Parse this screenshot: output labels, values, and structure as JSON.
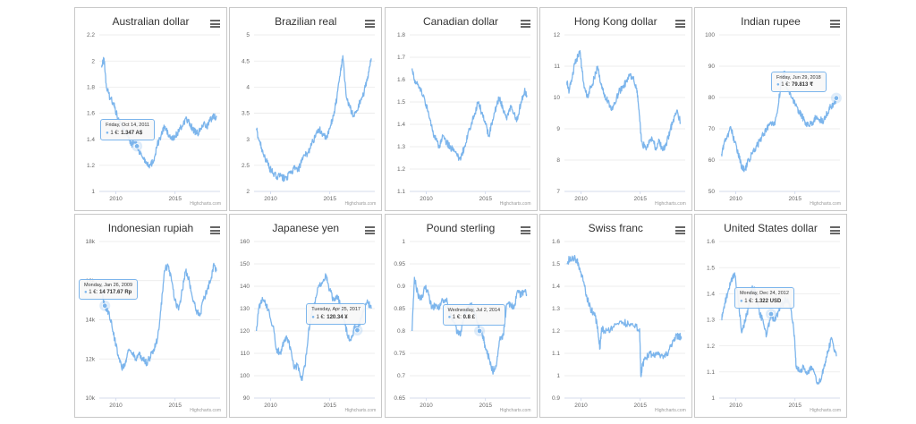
{
  "credit": "Highcharts.com",
  "line_color": "#7cb5ec",
  "menu_icon": "hamburger-menu-icon",
  "chart_data": [
    {
      "type": "line",
      "title": "Australian dollar",
      "ylim": [
        1,
        2.2
      ],
      "yticks": [
        "2.2",
        "2",
        "1.8",
        "1.6",
        "1.4",
        "1.2",
        "1"
      ],
      "xlim": [
        2008.6,
        2018.8
      ],
      "xticks": [
        "2010",
        "2015"
      ],
      "series": [
        {
          "x": [
            2008.8,
            2009.0,
            2009.2,
            2009.5,
            2009.8,
            2010.1,
            2010.4,
            2010.7,
            2011.0,
            2011.3,
            2011.6,
            2011.78,
            2012.0,
            2012.3,
            2012.6,
            2012.9,
            2013.2,
            2013.5,
            2013.8,
            2014.1,
            2014.4,
            2014.7,
            2015.0,
            2015.3,
            2015.6,
            2015.9,
            2016.2,
            2016.5,
            2016.8,
            2017.1,
            2017.4,
            2017.7,
            2018.0,
            2018.3,
            2018.5
          ],
          "y": [
            1.95,
            2.02,
            1.8,
            1.72,
            1.68,
            1.58,
            1.52,
            1.48,
            1.42,
            1.36,
            1.38,
            1.347,
            1.3,
            1.26,
            1.22,
            1.2,
            1.24,
            1.36,
            1.42,
            1.5,
            1.44,
            1.4,
            1.42,
            1.46,
            1.5,
            1.56,
            1.52,
            1.48,
            1.44,
            1.46,
            1.52,
            1.5,
            1.55,
            1.58,
            1.57
          ]
        }
      ],
      "tooltip": {
        "date": "Friday, Oct 14, 2011",
        "label": "1 €:",
        "value": "1.347 A$",
        "x": 2011.78,
        "y": 1.347
      }
    },
    {
      "type": "line",
      "title": "Brazilian real",
      "ylim": [
        2,
        5
      ],
      "yticks": [
        "5",
        "4.5",
        "4",
        "3.5",
        "3",
        "2.5",
        "2"
      ],
      "xlim": [
        2008.6,
        2018.8
      ],
      "xticks": [
        "2010",
        "2015"
      ],
      "series": [
        {
          "x": [
            2008.8,
            2009.0,
            2009.3,
            2009.6,
            2009.9,
            2010.2,
            2010.5,
            2010.8,
            2011.1,
            2011.4,
            2011.7,
            2012.0,
            2012.3,
            2012.6,
            2012.9,
            2013.2,
            2013.5,
            2013.8,
            2014.1,
            2014.4,
            2014.7,
            2015.0,
            2015.3,
            2015.6,
            2015.9,
            2016.1,
            2016.4,
            2016.7,
            2017.0,
            2017.3,
            2017.6,
            2017.9,
            2018.2,
            2018.5
          ],
          "y": [
            3.2,
            3.0,
            2.8,
            2.6,
            2.45,
            2.35,
            2.28,
            2.3,
            2.25,
            2.28,
            2.35,
            2.45,
            2.4,
            2.55,
            2.7,
            2.75,
            2.95,
            3.05,
            3.2,
            3.1,
            3.0,
            3.2,
            3.45,
            3.8,
            4.3,
            4.6,
            3.8,
            3.6,
            3.45,
            3.55,
            3.75,
            3.9,
            4.2,
            4.55
          ]
        }
      ]
    },
    {
      "type": "line",
      "title": "Canadian dollar",
      "ylim": [
        1.1,
        1.8
      ],
      "yticks": [
        "1.8",
        "1.7",
        "1.6",
        "1.5",
        "1.4",
        "1.3",
        "1.2",
        "1.1"
      ],
      "xlim": [
        2008.6,
        2018.8
      ],
      "xticks": [
        "2010",
        "2015"
      ],
      "series": [
        {
          "x": [
            2008.8,
            2009.0,
            2009.3,
            2009.6,
            2009.9,
            2010.2,
            2010.5,
            2010.8,
            2011.1,
            2011.4,
            2011.7,
            2012.0,
            2012.3,
            2012.6,
            2012.9,
            2013.2,
            2013.5,
            2013.8,
            2014.1,
            2014.4,
            2014.7,
            2015.0,
            2015.3,
            2015.6,
            2015.9,
            2016.2,
            2016.5,
            2016.8,
            2017.1,
            2017.4,
            2017.7,
            2018.0,
            2018.3,
            2018.5
          ],
          "y": [
            1.65,
            1.6,
            1.58,
            1.55,
            1.5,
            1.45,
            1.38,
            1.33,
            1.3,
            1.35,
            1.32,
            1.3,
            1.28,
            1.26,
            1.24,
            1.3,
            1.35,
            1.4,
            1.45,
            1.5,
            1.45,
            1.4,
            1.35,
            1.42,
            1.48,
            1.52,
            1.46,
            1.42,
            1.48,
            1.45,
            1.42,
            1.5,
            1.55,
            1.53
          ]
        }
      ]
    },
    {
      "type": "line",
      "title": "Hong Kong dollar",
      "ylim": [
        7,
        12
      ],
      "yticks": [
        "12",
        "11",
        "10",
        "9",
        "8",
        "7"
      ],
      "xlim": [
        2008.6,
        2018.8
      ],
      "xticks": [
        "2010",
        "2015"
      ],
      "series": [
        {
          "x": [
            2008.8,
            2009.0,
            2009.3,
            2009.6,
            2009.9,
            2010.2,
            2010.5,
            2010.8,
            2011.1,
            2011.4,
            2011.7,
            2012.0,
            2012.3,
            2012.6,
            2012.9,
            2013.2,
            2013.5,
            2013.8,
            2014.1,
            2014.4,
            2014.7,
            2014.9,
            2015.1,
            2015.4,
            2015.7,
            2016.0,
            2016.3,
            2016.6,
            2016.9,
            2017.2,
            2017.5,
            2017.8,
            2018.1,
            2018.4
          ],
          "y": [
            10.5,
            10.2,
            10.8,
            11.2,
            11.5,
            10.5,
            10.0,
            10.3,
            10.6,
            11.0,
            10.4,
            10.0,
            9.9,
            9.6,
            9.8,
            10.2,
            10.3,
            10.5,
            10.7,
            10.6,
            10.3,
            9.6,
            8.6,
            8.4,
            8.5,
            8.7,
            8.4,
            8.6,
            8.3,
            8.5,
            8.9,
            9.3,
            9.6,
            9.2
          ]
        }
      ]
    },
    {
      "type": "line",
      "title": "Indian rupee",
      "ylim": [
        50,
        100
      ],
      "yticks": [
        "100",
        "90",
        "80",
        "70",
        "60",
        "50"
      ],
      "xlim": [
        2008.6,
        2018.8
      ],
      "xticks": [
        "2010",
        "2015"
      ],
      "series": [
        {
          "x": [
            2008.8,
            2009.0,
            2009.3,
            2009.6,
            2009.9,
            2010.2,
            2010.5,
            2010.8,
            2011.1,
            2011.4,
            2011.7,
            2012.0,
            2012.3,
            2012.6,
            2012.9,
            2013.2,
            2013.5,
            2013.8,
            2014.1,
            2014.4,
            2014.7,
            2015.0,
            2015.3,
            2015.6,
            2015.9,
            2016.2,
            2016.5,
            2016.8,
            2017.1,
            2017.4,
            2017.7,
            2018.0,
            2018.3,
            2018.49
          ],
          "y": [
            62,
            65,
            68,
            70,
            66,
            62,
            58,
            57,
            60,
            62,
            64,
            66,
            68,
            70,
            72,
            71,
            75,
            84,
            88,
            82,
            80,
            78,
            76,
            74,
            72,
            71,
            72,
            74,
            73,
            72,
            75,
            77,
            78,
            79.813
          ]
        }
      ],
      "tooltip": {
        "date": "Friday, Jun 29, 2018",
        "label": "1 €:",
        "value": "79.813 ₹",
        "x": 2018.49,
        "y": 79.813
      }
    },
    {
      "type": "line",
      "title": "Indonesian rupiah",
      "ylim": [
        10000,
        18000
      ],
      "yticks": [
        "18k",
        "16k",
        "14k",
        "12k",
        "10k"
      ],
      "xlim": [
        2008.6,
        2018.8
      ],
      "xticks": [
        "2010",
        "2015"
      ],
      "series": [
        {
          "x": [
            2008.8,
            2009.07,
            2009.3,
            2009.6,
            2009.9,
            2010.2,
            2010.5,
            2010.8,
            2011.1,
            2011.4,
            2011.7,
            2012.0,
            2012.3,
            2012.6,
            2012.9,
            2013.2,
            2013.5,
            2013.8,
            2014.1,
            2014.4,
            2014.7,
            2015.0,
            2015.3,
            2015.6,
            2015.9,
            2016.2,
            2016.5,
            2016.8,
            2017.1,
            2017.4,
            2017.7,
            2018.0,
            2018.3,
            2018.5
          ],
          "y": [
            15500,
            14717.67,
            14500,
            14000,
            13000,
            12200,
            11500,
            11800,
            12500,
            12300,
            12000,
            12200,
            12000,
            11800,
            12100,
            12500,
            13000,
            14500,
            16500,
            16800,
            16000,
            15000,
            14500,
            15500,
            16500,
            16000,
            15000,
            14500,
            14200,
            15000,
            15500,
            16000,
            16800,
            16500
          ]
        }
      ],
      "tooltip": {
        "date": "Monday, Jan 26, 2009",
        "label": "1 €:",
        "value": "14 717.67 Rp",
        "x": 2009.07,
        "y": 14717.67
      }
    },
    {
      "type": "line",
      "title": "Japanese yen",
      "ylim": [
        90,
        160
      ],
      "yticks": [
        "160",
        "150",
        "140",
        "130",
        "120",
        "110",
        "100",
        "90"
      ],
      "xlim": [
        2008.6,
        2018.8
      ],
      "xticks": [
        "2010",
        "2015"
      ],
      "series": [
        {
          "x": [
            2008.8,
            2009.0,
            2009.3,
            2009.6,
            2009.9,
            2010.2,
            2010.5,
            2010.8,
            2011.1,
            2011.4,
            2011.7,
            2012.0,
            2012.3,
            2012.6,
            2012.9,
            2013.2,
            2013.5,
            2013.8,
            2014.1,
            2014.4,
            2014.7,
            2015.0,
            2015.3,
            2015.6,
            2015.9,
            2016.2,
            2016.5,
            2016.8,
            2017.1,
            2017.32,
            2017.6,
            2017.9,
            2018.2,
            2018.5
          ],
          "y": [
            120,
            130,
            135,
            132,
            128,
            122,
            112,
            110,
            115,
            117,
            112,
            103,
            105,
            98,
            104,
            120,
            128,
            135,
            140,
            142,
            145,
            138,
            134,
            136,
            132,
            125,
            118,
            116,
            122,
            120.34,
            125,
            130,
            133,
            130
          ]
        }
      ],
      "tooltip": {
        "date": "Tuesday, Apr 25, 2017",
        "label": "1 €:",
        "value": "120.34 ¥",
        "x": 2017.32,
        "y": 120.34
      }
    },
    {
      "type": "line",
      "title": "Pound sterling",
      "ylim": [
        0.65,
        1
      ],
      "yticks": [
        "1",
        "0.95",
        "0.9",
        "0.85",
        "0.8",
        "0.75",
        "0.7",
        "0.65"
      ],
      "xlim": [
        2008.6,
        2018.8
      ],
      "xticks": [
        "2010",
        "2015"
      ],
      "series": [
        {
          "x": [
            2008.8,
            2009.0,
            2009.3,
            2009.6,
            2009.9,
            2010.2,
            2010.5,
            2010.8,
            2011.1,
            2011.4,
            2011.7,
            2012.0,
            2012.3,
            2012.6,
            2012.9,
            2013.2,
            2013.5,
            2013.8,
            2014.1,
            2014.5,
            2014.8,
            2015.0,
            2015.3,
            2015.6,
            2015.9,
            2016.2,
            2016.5,
            2016.8,
            2017.1,
            2017.4,
            2017.7,
            2018.0,
            2018.3,
            2018.5
          ],
          "y": [
            0.8,
            0.92,
            0.88,
            0.87,
            0.9,
            0.88,
            0.85,
            0.86,
            0.85,
            0.87,
            0.87,
            0.84,
            0.82,
            0.8,
            0.79,
            0.84,
            0.85,
            0.86,
            0.84,
            0.8,
            0.79,
            0.76,
            0.74,
            0.71,
            0.72,
            0.78,
            0.79,
            0.86,
            0.86,
            0.85,
            0.89,
            0.88,
            0.89,
            0.88
          ]
        }
      ],
      "tooltip": {
        "date": "Wednesday, Jul 2, 2014",
        "label": "1 €:",
        "value": "0.8 £",
        "x": 2014.5,
        "y": 0.8
      }
    },
    {
      "type": "line",
      "title": "Swiss franc",
      "ylim": [
        0.9,
        1.6
      ],
      "yticks": [
        "1.6",
        "1.5",
        "1.4",
        "1.3",
        "1.2",
        "1.1",
        "1",
        "0.9"
      ],
      "xlim": [
        2008.6,
        2018.8
      ],
      "xticks": [
        "2010",
        "2015"
      ],
      "series": [
        {
          "x": [
            2008.8,
            2009.0,
            2009.3,
            2009.6,
            2009.9,
            2010.2,
            2010.5,
            2010.8,
            2011.1,
            2011.4,
            2011.6,
            2011.75,
            2012.0,
            2012.5,
            2013.0,
            2013.5,
            2014.0,
            2014.5,
            2014.95,
            2015.05,
            2015.2,
            2015.5,
            2015.8,
            2016.1,
            2016.4,
            2016.7,
            2017.0,
            2017.3,
            2017.6,
            2017.9,
            2018.2,
            2018.5
          ],
          "y": [
            1.5,
            1.52,
            1.53,
            1.52,
            1.48,
            1.42,
            1.35,
            1.3,
            1.28,
            1.22,
            1.12,
            1.21,
            1.2,
            1.21,
            1.23,
            1.24,
            1.23,
            1.22,
            1.21,
            1.0,
            1.05,
            1.08,
            1.1,
            1.09,
            1.1,
            1.08,
            1.09,
            1.1,
            1.13,
            1.17,
            1.18,
            1.17
          ]
        }
      ]
    },
    {
      "type": "line",
      "title": "United States dollar",
      "ylim": [
        1,
        1.6
      ],
      "yticks": [
        "1.6",
        "1.5",
        "1.4",
        "1.3",
        "1.2",
        "1.1",
        "1"
      ],
      "xlim": [
        2008.6,
        2018.8
      ],
      "xticks": [
        "2010",
        "2015"
      ],
      "series": [
        {
          "x": [
            2008.8,
            2009.0,
            2009.3,
            2009.6,
            2009.9,
            2010.2,
            2010.5,
            2010.8,
            2011.1,
            2011.4,
            2011.7,
            2012.0,
            2012.3,
            2012.6,
            2012.98,
            2013.2,
            2013.5,
            2013.8,
            2014.1,
            2014.4,
            2014.7,
            2014.95,
            2015.1,
            2015.4,
            2015.7,
            2016.0,
            2016.3,
            2016.6,
            2016.9,
            2017.2,
            2017.5,
            2017.8,
            2018.1,
            2018.5
          ],
          "y": [
            1.3,
            1.35,
            1.4,
            1.45,
            1.48,
            1.38,
            1.25,
            1.3,
            1.35,
            1.43,
            1.4,
            1.32,
            1.3,
            1.24,
            1.322,
            1.3,
            1.32,
            1.35,
            1.37,
            1.38,
            1.33,
            1.24,
            1.12,
            1.1,
            1.12,
            1.09,
            1.12,
            1.1,
            1.06,
            1.07,
            1.13,
            1.18,
            1.23,
            1.16
          ]
        }
      ],
      "tooltip": {
        "date": "Monday, Dec 24, 2012",
        "label": "1 €:",
        "value": "1.322 USD",
        "x": 2012.98,
        "y": 1.322
      }
    }
  ]
}
